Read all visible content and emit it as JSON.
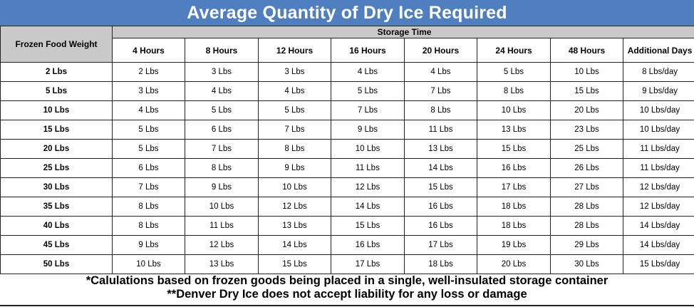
{
  "title": "Average Quantity of Dry Ice Required",
  "table": {
    "row_header_label": "Frozen Food Weight",
    "group_label": "Storage Time",
    "columns": [
      "4 Hours",
      "8 Hours",
      "12 Hours",
      "16 Hours",
      "20 Hours",
      "24 Hours",
      "48 Hours",
      "Additional Days"
    ],
    "rows": [
      {
        "weight": "2 Lbs",
        "cells": [
          "2 Lbs",
          "3 Lbs",
          "3 Lbs",
          "4 Lbs",
          "4 Lbs",
          "5 Lbs",
          "10 Lbs",
          "8 Lbs/day"
        ]
      },
      {
        "weight": "5 Lbs",
        "cells": [
          "3 Lbs",
          "4 Lbs",
          "4 Lbs",
          "5 Lbs",
          "7 Lbs",
          "8 Lbs",
          "15 Lbs",
          "9 Lbs/day"
        ]
      },
      {
        "weight": "10 Lbs",
        "cells": [
          "4 Lbs",
          "5 Lbs",
          "5 Lbs",
          "7 Lbs",
          "8 Lbs",
          "10 Lbs",
          "20 Lbs",
          "10 Lbs/day"
        ]
      },
      {
        "weight": "15 Lbs",
        "cells": [
          "5 Lbs",
          "6 Lbs",
          "7 Lbs",
          "9 Lbs",
          "11 Lbs",
          "13 Lbs",
          "23 Lbs",
          "10 Lbs/day"
        ]
      },
      {
        "weight": "20 Lbs",
        "cells": [
          "5 Lbs",
          "7 Lbs",
          "8 Lbs",
          "10 Lbs",
          "13 Lbs",
          "15 Lbs",
          "25 Lbs",
          "11 Lbs/day"
        ]
      },
      {
        "weight": "25 Lbs",
        "cells": [
          "6 Lbs",
          "8 Lbs",
          "9 Lbs",
          "11 Lbs",
          "14 Lbs",
          "16 Lbs",
          "26 Lbs",
          "11 Lbs/day"
        ]
      },
      {
        "weight": "30 Lbs",
        "cells": [
          "7 Lbs",
          "9 Lbs",
          "10 Lbs",
          "12 Lbs",
          "15 Lbs",
          "17 Lbs",
          "27 Lbs",
          "12 Lbs/day"
        ]
      },
      {
        "weight": "35 Lbs",
        "cells": [
          "8 Lbs",
          "10 Lbs",
          "12 Lbs",
          "14 Lbs",
          "16 Lbs",
          "18 Lbs",
          "28 Lbs",
          "12 Lbs/day"
        ]
      },
      {
        "weight": "40 Lbs",
        "cells": [
          "8 Lbs",
          "11 Lbs",
          "13 Lbs",
          "15 Lbs",
          "16 Lbs",
          "18 Lbs",
          "28 Lbs",
          "14 Lbs/day"
        ]
      },
      {
        "weight": "45 Lbs",
        "cells": [
          "9 Lbs",
          "12 Lbs",
          "14 Lbs",
          "16 Lbs",
          "17 Lbs",
          "19 Lbs",
          "29 Lbs",
          "14 Lbs/day"
        ]
      },
      {
        "weight": "50 Lbs",
        "cells": [
          "10 Lbs",
          "13 Lbs",
          "15 Lbs",
          "17 Lbs",
          "18 Lbs",
          "20 Lbs",
          "30 Lbs",
          "15 Lbs/day"
        ]
      }
    ]
  },
  "notes": [
    "*Calulations based on frozen goods being placed in a single, well-insulated storage container",
    "**Denver Dry Ice does not accept liability for any loss or damage"
  ],
  "colors": {
    "title_bg": "#4f7fbf",
    "header_bg": "#c9c9c9"
  }
}
